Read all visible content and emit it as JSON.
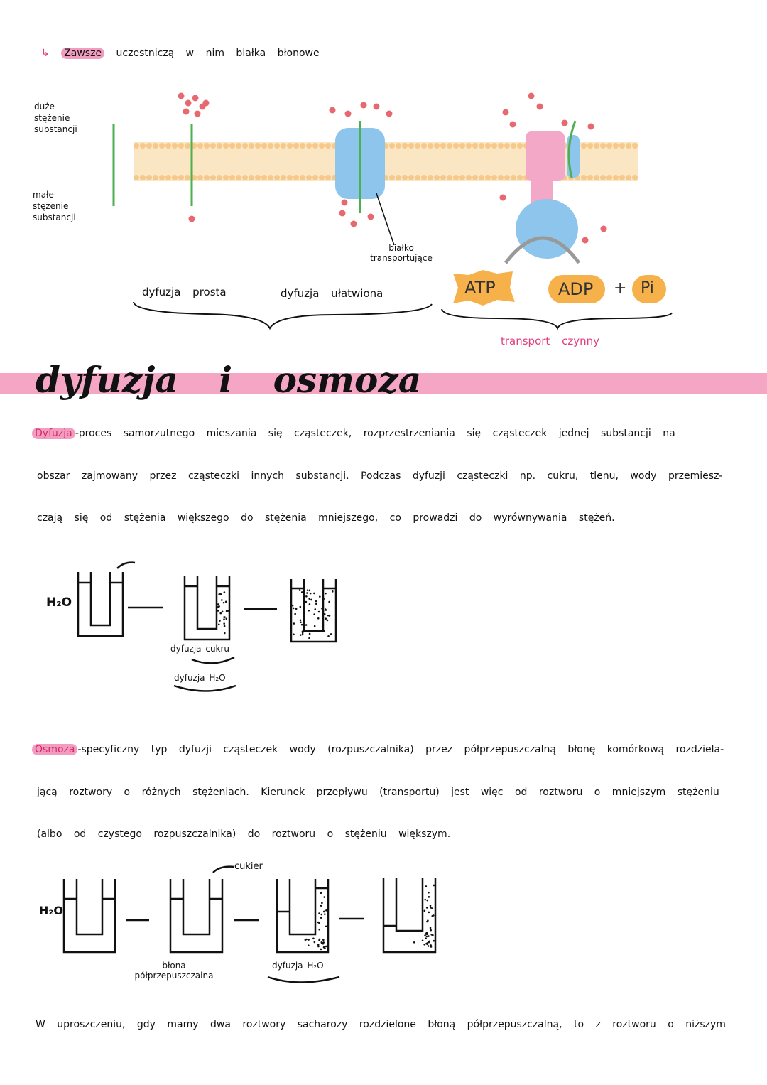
{
  "intro": {
    "arrow": "↳",
    "highlight": "Zawsze",
    "rest": "uczestniczą w nim białka błonowe"
  },
  "membrane_diagram": {
    "high_label": "duże stężenie substancji",
    "low_label": "małe stężenie substancji",
    "protein_label": "białko transportujące",
    "simple": "dyfuzja prosta",
    "facilitated": "dyfuzja ułatwiona",
    "atp": "ATP",
    "adp": "ADP",
    "plus": "+",
    "pi": "Pi",
    "active": "transport czynny"
  },
  "title": "dyfuzja i osmoza",
  "diffusion": {
    "term": "Dyfuzja",
    "lines": [
      "-proces samorzutnego mieszania się cząsteczek, rozprzestrzeniania się cząsteczek jednej substancji na",
      "obszar zajmowany przez cząsteczki innych substancji. Podczas dyfuzji cząsteczki np. cukru, tlenu, wody przemiesz-",
      "czają się od stężenia większego do stężenia mniejszego, co prowadzi do wyrównywania stężeń."
    ]
  },
  "diffusion_diagram": {
    "h2o": "H₂O",
    "sugar_label": "dyfuzja cukru",
    "water_label": "dyfuzja H₂O"
  },
  "osmosis": {
    "term": "Osmoza",
    "lines": [
      "-specyficzny typ dyfuzji cząsteczek wody (rozpuszczalnika) przez półprzepuszczalną błonę komórkową rozdziela-",
      "jącą roztwory o różnych stężeniach. Kierunek przepływu (transportu) jest więc od roztworu o mniejszym stężeniu",
      "(albo od czystego rozpuszczalnika) do roztworu o stężeniu większym."
    ]
  },
  "osmosis_diagram": {
    "h2o": "H₂O",
    "sugar": "cukier",
    "membrane": "błona półprzepuszczalna",
    "water_label": "dyfuzja H₂O"
  },
  "footer": "W uproszczeniu, gdy mamy dwa roztwory sacharozy rozdzielone błoną półprzepuszczalną, to z roztworu o niższym",
  "colors": {
    "pink": "#f4a6c4",
    "accent": "#e0407f",
    "green": "#4caf50",
    "atp": "#f7b14a"
  }
}
